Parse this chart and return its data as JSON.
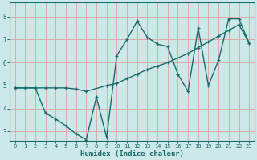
{
  "xlabel": "Humidex (Indice chaleur)",
  "bg_color": "#cce8e8",
  "grid_color": "#ddaaaa",
  "line_color": "#1a6b6b",
  "xlim": [
    -0.5,
    23.5
  ],
  "ylim": [
    2.6,
    8.6
  ],
  "xticks": [
    0,
    1,
    2,
    3,
    4,
    5,
    6,
    7,
    8,
    9,
    10,
    11,
    12,
    13,
    14,
    15,
    16,
    17,
    18,
    19,
    20,
    21,
    22,
    23
  ],
  "yticks": [
    3,
    4,
    5,
    6,
    7,
    8
  ],
  "line1_x": [
    0,
    1,
    2,
    3,
    4,
    5,
    6,
    7,
    8,
    9,
    10,
    11,
    12,
    13,
    14,
    15,
    16,
    17,
    18,
    19,
    20,
    21,
    22,
    23
  ],
  "line1_y": [
    4.9,
    4.9,
    4.9,
    3.8,
    3.55,
    3.25,
    2.9,
    2.65,
    4.5,
    2.75,
    6.3,
    7.0,
    7.8,
    7.1,
    6.8,
    6.7,
    5.5,
    4.75,
    7.5,
    5.0,
    6.1,
    7.9,
    7.9,
    6.85
  ],
  "line2_x": [
    0,
    2,
    3,
    4,
    5,
    6,
    7,
    9,
    10,
    11,
    12,
    13,
    14,
    15,
    17,
    18,
    19,
    20,
    21,
    22,
    23
  ],
  "line2_y": [
    4.9,
    4.9,
    4.9,
    4.9,
    4.9,
    4.85,
    4.75,
    5.0,
    5.1,
    5.3,
    5.5,
    5.7,
    5.85,
    6.0,
    6.4,
    6.65,
    6.9,
    7.15,
    7.4,
    7.65,
    6.85
  ]
}
